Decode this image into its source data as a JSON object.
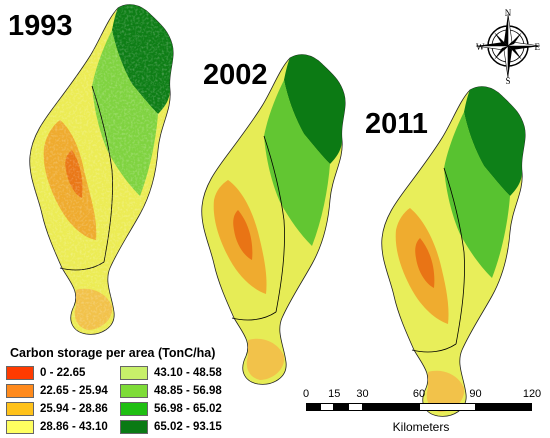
{
  "panels": [
    {
      "year": "1993"
    },
    {
      "year": "2002"
    },
    {
      "year": "2011"
    }
  ],
  "legend": {
    "title": "Carbon storage per area (TonC/ha)",
    "classes": [
      {
        "label": "0 - 22.65",
        "color": "#ff3b00"
      },
      {
        "label": "22.65 - 25.94",
        "color": "#ff8a1c"
      },
      {
        "label": "25.94 - 28.86",
        "color": "#ffc21a"
      },
      {
        "label": "28.86 - 43.10",
        "color": "#ffff60"
      },
      {
        "label": "43.10 - 48.58",
        "color": "#c8f06a"
      },
      {
        "label": "48.85 - 56.98",
        "color": "#7edc38"
      },
      {
        "label": "56.98 - 65.02",
        "color": "#1fbf12"
      },
      {
        "label": "65.02 - 93.15",
        "color": "#0a7a14"
      }
    ]
  },
  "scalebar": {
    "ticks": [
      "0",
      "15",
      "30",
      "60",
      "90",
      "120"
    ],
    "tick_values": [
      0,
      15,
      30,
      60,
      90,
      120
    ],
    "units": "Kilometers"
  },
  "compass": {
    "n": "N",
    "s": "S",
    "e": "E",
    "w": "W"
  },
  "colors": {
    "dark_green": "#0a7a14",
    "green": "#3cbc1e",
    "light_green": "#a6e24a",
    "yellow": "#f4f050",
    "orange": "#f0a020",
    "red_orange": "#e86a10",
    "boundary": "#000000"
  }
}
